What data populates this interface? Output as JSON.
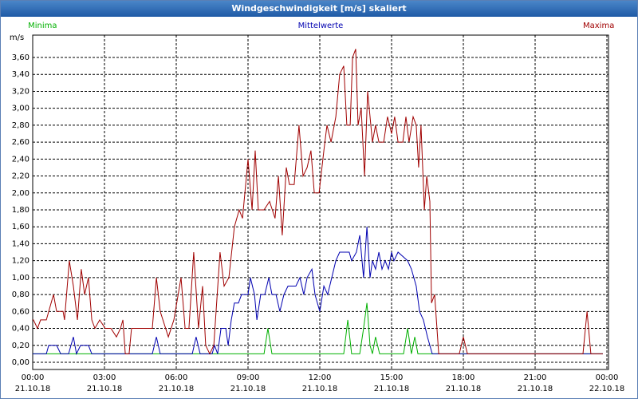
{
  "chart_data": {
    "type": "line",
    "title": "Windgeschwindigkeit [m/s] skaliert",
    "y_label": "m/s",
    "xlim": [
      0,
      24
    ],
    "ylim": [
      -0.085,
      3.864
    ],
    "xticks": [
      {
        "value": 0,
        "label": "00:00\n21.10.18"
      },
      {
        "value": 3,
        "label": "03:00\n21.10.18"
      },
      {
        "value": 6,
        "label": "06:00\n21.10.18"
      },
      {
        "value": 9,
        "label": "09:00\n21.10.18"
      },
      {
        "value": 12,
        "label": "12:00\n21.10.18"
      },
      {
        "value": 15,
        "label": "15:00\n21.10.18"
      },
      {
        "value": 18,
        "label": "18:00\n21.10.18"
      },
      {
        "value": 21,
        "label": "21:00\n21.10.18"
      },
      {
        "value": 24,
        "label": "00:00\n22.10.18"
      }
    ],
    "yticks": [
      {
        "value": 0,
        "label": "0,00"
      },
      {
        "value": 0.2,
        "label": "0,20"
      },
      {
        "value": 0.4,
        "label": "0,40"
      },
      {
        "value": 0.6,
        "label": "0,60"
      },
      {
        "value": 0.8,
        "label": "0,80"
      },
      {
        "value": 1,
        "label": "1,00"
      },
      {
        "value": 1.2,
        "label": "1,20"
      },
      {
        "value": 1.4,
        "label": "1,40"
      },
      {
        "value": 1.6,
        "label": "1,60"
      },
      {
        "value": 1.8,
        "label": "1,80"
      },
      {
        "value": 2,
        "label": "2,00"
      },
      {
        "value": 2.2,
        "label": "2,20"
      },
      {
        "value": 2.4,
        "label": "2,40"
      },
      {
        "value": 2.6,
        "label": "2,60"
      },
      {
        "value": 2.8,
        "label": "2,80"
      },
      {
        "value": 3,
        "label": "3,00"
      },
      {
        "value": 3.2,
        "label": "3,20"
      },
      {
        "value": 3.4,
        "label": "3,40"
      },
      {
        "value": 3.6,
        "label": "3,60"
      }
    ],
    "grid": true,
    "series": [
      {
        "name": "Minima",
        "color": "#00b000",
        "x": [
          0,
          9.67,
          9.83,
          10.0,
          13.0,
          13.17,
          13.33,
          13.67,
          13.83,
          13.97,
          14.1,
          14.2,
          14.33,
          14.5,
          15.5,
          15.67,
          15.83,
          15.97,
          16.1,
          23.83
        ],
        "values": [
          0.1,
          0.1,
          0.4,
          0.1,
          0.1,
          0.5,
          0.1,
          0.1,
          0.4,
          0.7,
          0.2,
          0.1,
          0.3,
          0.1,
          0.1,
          0.4,
          0.1,
          0.3,
          0.1,
          0.1
        ]
      },
      {
        "name": "Mittelwerte",
        "color": "#0000b0",
        "x": [
          0,
          0.57,
          0.67,
          1.0,
          1.17,
          1.5,
          1.7,
          1.83,
          2.0,
          2.33,
          2.47,
          5.0,
          5.17,
          5.33,
          6.67,
          6.83,
          7.0,
          7.5,
          7.6,
          7.73,
          7.87,
          8.07,
          8.17,
          8.3,
          8.43,
          8.6,
          8.73,
          9.0,
          9.1,
          9.27,
          9.37,
          9.53,
          9.7,
          9.87,
          10.0,
          10.17,
          10.33,
          10.5,
          10.67,
          11.0,
          11.17,
          11.33,
          11.47,
          11.67,
          11.8,
          12.0,
          12.17,
          12.33,
          12.5,
          12.67,
          12.83,
          13.23,
          13.33,
          13.53,
          13.67,
          13.83,
          13.97,
          14.1,
          14.2,
          14.33,
          14.47,
          14.6,
          14.73,
          14.87,
          15.0,
          15.1,
          15.27,
          15.67,
          15.83,
          16.03,
          16.17,
          16.33,
          16.5,
          16.7,
          23.83
        ],
        "values": [
          0.1,
          0.1,
          0.2,
          0.2,
          0.1,
          0.1,
          0.3,
          0.1,
          0.2,
          0.2,
          0.1,
          0.1,
          0.3,
          0.1,
          0.1,
          0.3,
          0.1,
          0.1,
          0.2,
          0.1,
          0.4,
          0.4,
          0.2,
          0.5,
          0.7,
          0.7,
          0.8,
          0.8,
          1.0,
          0.8,
          0.5,
          0.8,
          0.8,
          1.0,
          0.8,
          0.8,
          0.6,
          0.8,
          0.9,
          0.9,
          1.0,
          0.8,
          1.0,
          1.1,
          0.8,
          0.6,
          0.9,
          0.8,
          1.0,
          1.2,
          1.3,
          1.3,
          1.2,
          1.3,
          1.5,
          1.0,
          1.6,
          1.0,
          1.2,
          1.1,
          1.3,
          1.1,
          1.2,
          1.1,
          1.3,
          1.2,
          1.3,
          1.2,
          1.1,
          0.9,
          0.6,
          0.5,
          0.3,
          0.1,
          0.1
        ]
      },
      {
        "name": "Maxima",
        "color": "#a00000",
        "x": [
          0,
          0.03,
          0.2,
          0.33,
          0.57,
          0.67,
          0.87,
          1.0,
          1.27,
          1.33,
          1.53,
          1.7,
          1.87,
          2.03,
          2.17,
          2.33,
          2.47,
          2.6,
          2.8,
          3.03,
          3.27,
          3.5,
          3.67,
          3.77,
          3.87,
          4.03,
          4.13,
          4.5,
          5.0,
          5.17,
          5.33,
          5.67,
          5.9,
          6.2,
          6.37,
          6.53,
          6.73,
          6.93,
          7.1,
          7.23,
          7.4,
          7.57,
          7.83,
          8.0,
          8.2,
          8.43,
          8.63,
          8.77,
          9.0,
          9.17,
          9.3,
          9.43,
          9.67,
          9.9,
          10.13,
          10.27,
          10.43,
          10.6,
          10.73,
          10.93,
          11.13,
          11.3,
          11.47,
          11.63,
          11.77,
          11.97,
          12.17,
          12.3,
          12.47,
          12.67,
          12.83,
          13.0,
          13.13,
          13.27,
          13.37,
          13.5,
          13.6,
          13.73,
          13.87,
          14.0,
          14.2,
          14.33,
          14.47,
          14.67,
          14.83,
          15.0,
          15.13,
          15.27,
          15.47,
          15.6,
          15.73,
          15.9,
          16.03,
          16.13,
          16.23,
          16.37,
          16.47,
          16.6,
          16.67,
          16.8,
          16.97,
          17.83,
          18.0,
          18.17,
          23.0,
          23.17,
          23.33,
          23.83
        ],
        "values": [
          0.5,
          0.5,
          0.4,
          0.5,
          0.5,
          0.6,
          0.8,
          0.6,
          0.6,
          0.5,
          1.2,
          0.9,
          0.5,
          1.1,
          0.8,
          1.0,
          0.5,
          0.4,
          0.5,
          0.4,
          0.4,
          0.3,
          0.4,
          0.5,
          0.1,
          0.1,
          0.4,
          0.4,
          0.4,
          1.0,
          0.6,
          0.3,
          0.5,
          1.0,
          0.4,
          0.4,
          1.3,
          0.4,
          0.9,
          0.2,
          0.1,
          0.2,
          1.3,
          0.9,
          1.0,
          1.6,
          1.8,
          1.7,
          2.4,
          1.8,
          2.5,
          1.8,
          1.8,
          1.9,
          1.7,
          2.2,
          1.5,
          2.3,
          2.1,
          2.1,
          2.8,
          2.2,
          2.3,
          2.5,
          2.0,
          2.0,
          2.5,
          2.8,
          2.6,
          2.9,
          3.4,
          3.5,
          2.8,
          2.8,
          3.6,
          3.7,
          2.8,
          3.0,
          2.2,
          3.2,
          2.6,
          2.8,
          2.6,
          2.6,
          2.9,
          2.7,
          2.9,
          2.6,
          2.6,
          2.9,
          2.6,
          2.9,
          2.8,
          2.3,
          2.8,
          1.8,
          2.2,
          1.9,
          0.7,
          0.8,
          0.1,
          0.1,
          0.3,
          0.1,
          0.1,
          0.6,
          0.1,
          0.1
        ]
      }
    ]
  }
}
